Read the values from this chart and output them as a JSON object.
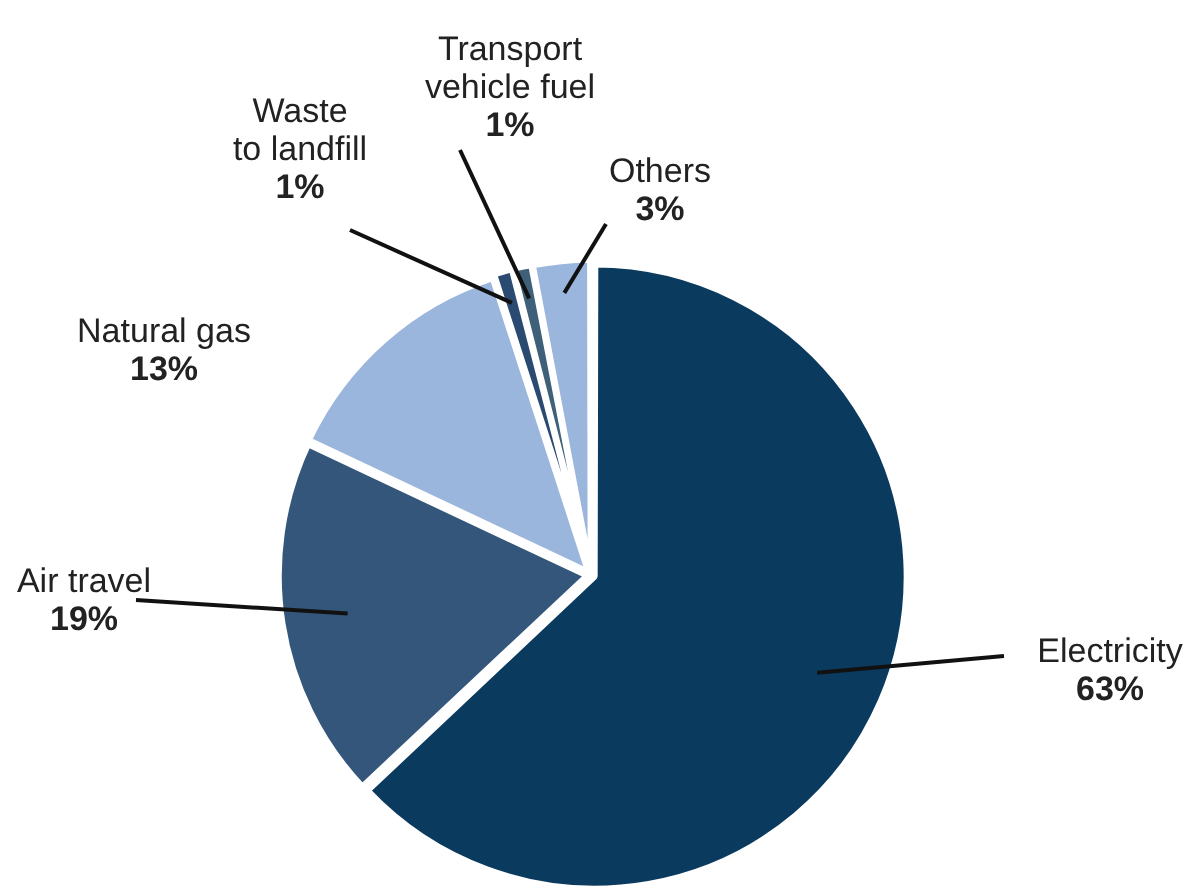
{
  "chart_data": {
    "type": "pie",
    "categories": [
      "Electricity",
      "Air travel",
      "Natural gas",
      "Waste\nto landfill",
      "Transport\nvehicle fuel",
      "Others"
    ],
    "values": [
      63,
      19,
      13,
      1,
      1,
      3
    ],
    "colors": [
      "#0b3a5f",
      "#34567b",
      "#9bb6dd",
      "#2b4a72",
      "#3e6079",
      "#9bb6dd"
    ],
    "value_labels": [
      "63%",
      "19%",
      "13%",
      "1%",
      "1%",
      "3%"
    ],
    "legend": false
  }
}
